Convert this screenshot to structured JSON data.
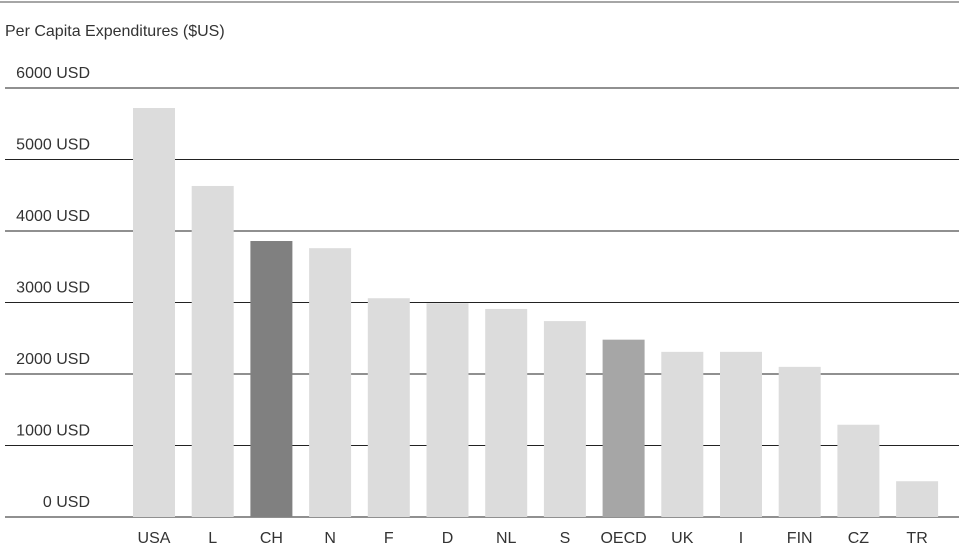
{
  "chart_data": {
    "type": "bar",
    "title": "Per Capita Expenditures ($US)",
    "categories": [
      "USA",
      "L",
      "CH",
      "N",
      "F",
      "D",
      "NL",
      "S",
      "OECD",
      "UK",
      "I",
      "FIN",
      "CZ",
      "TR"
    ],
    "values": [
      5720,
      4630,
      3860,
      3760,
      3060,
      2990,
      2910,
      2740,
      2480,
      2310,
      2310,
      2100,
      1290,
      500
    ],
    "colors": [
      "#dcdcdc",
      "#dcdcdc",
      "#808080",
      "#dcdcdc",
      "#dcdcdc",
      "#dcdcdc",
      "#dcdcdc",
      "#dcdcdc",
      "#a6a6a6",
      "#dcdcdc",
      "#dcdcdc",
      "#dcdcdc",
      "#dcdcdc",
      "#dcdcdc"
    ],
    "ylim": [
      0,
      6000
    ],
    "yticks": [
      {
        "value": 0,
        "label": "0 USD"
      },
      {
        "value": 1000,
        "label": "1000 USD"
      },
      {
        "value": 2000,
        "label": "2000 USD"
      },
      {
        "value": 3000,
        "label": "3000 USD"
      },
      {
        "value": 4000,
        "label": "4000 USD"
      },
      {
        "value": 5000,
        "label": "5000 USD"
      },
      {
        "value": 6000,
        "label": "6000 USD"
      }
    ],
    "grid": true
  }
}
